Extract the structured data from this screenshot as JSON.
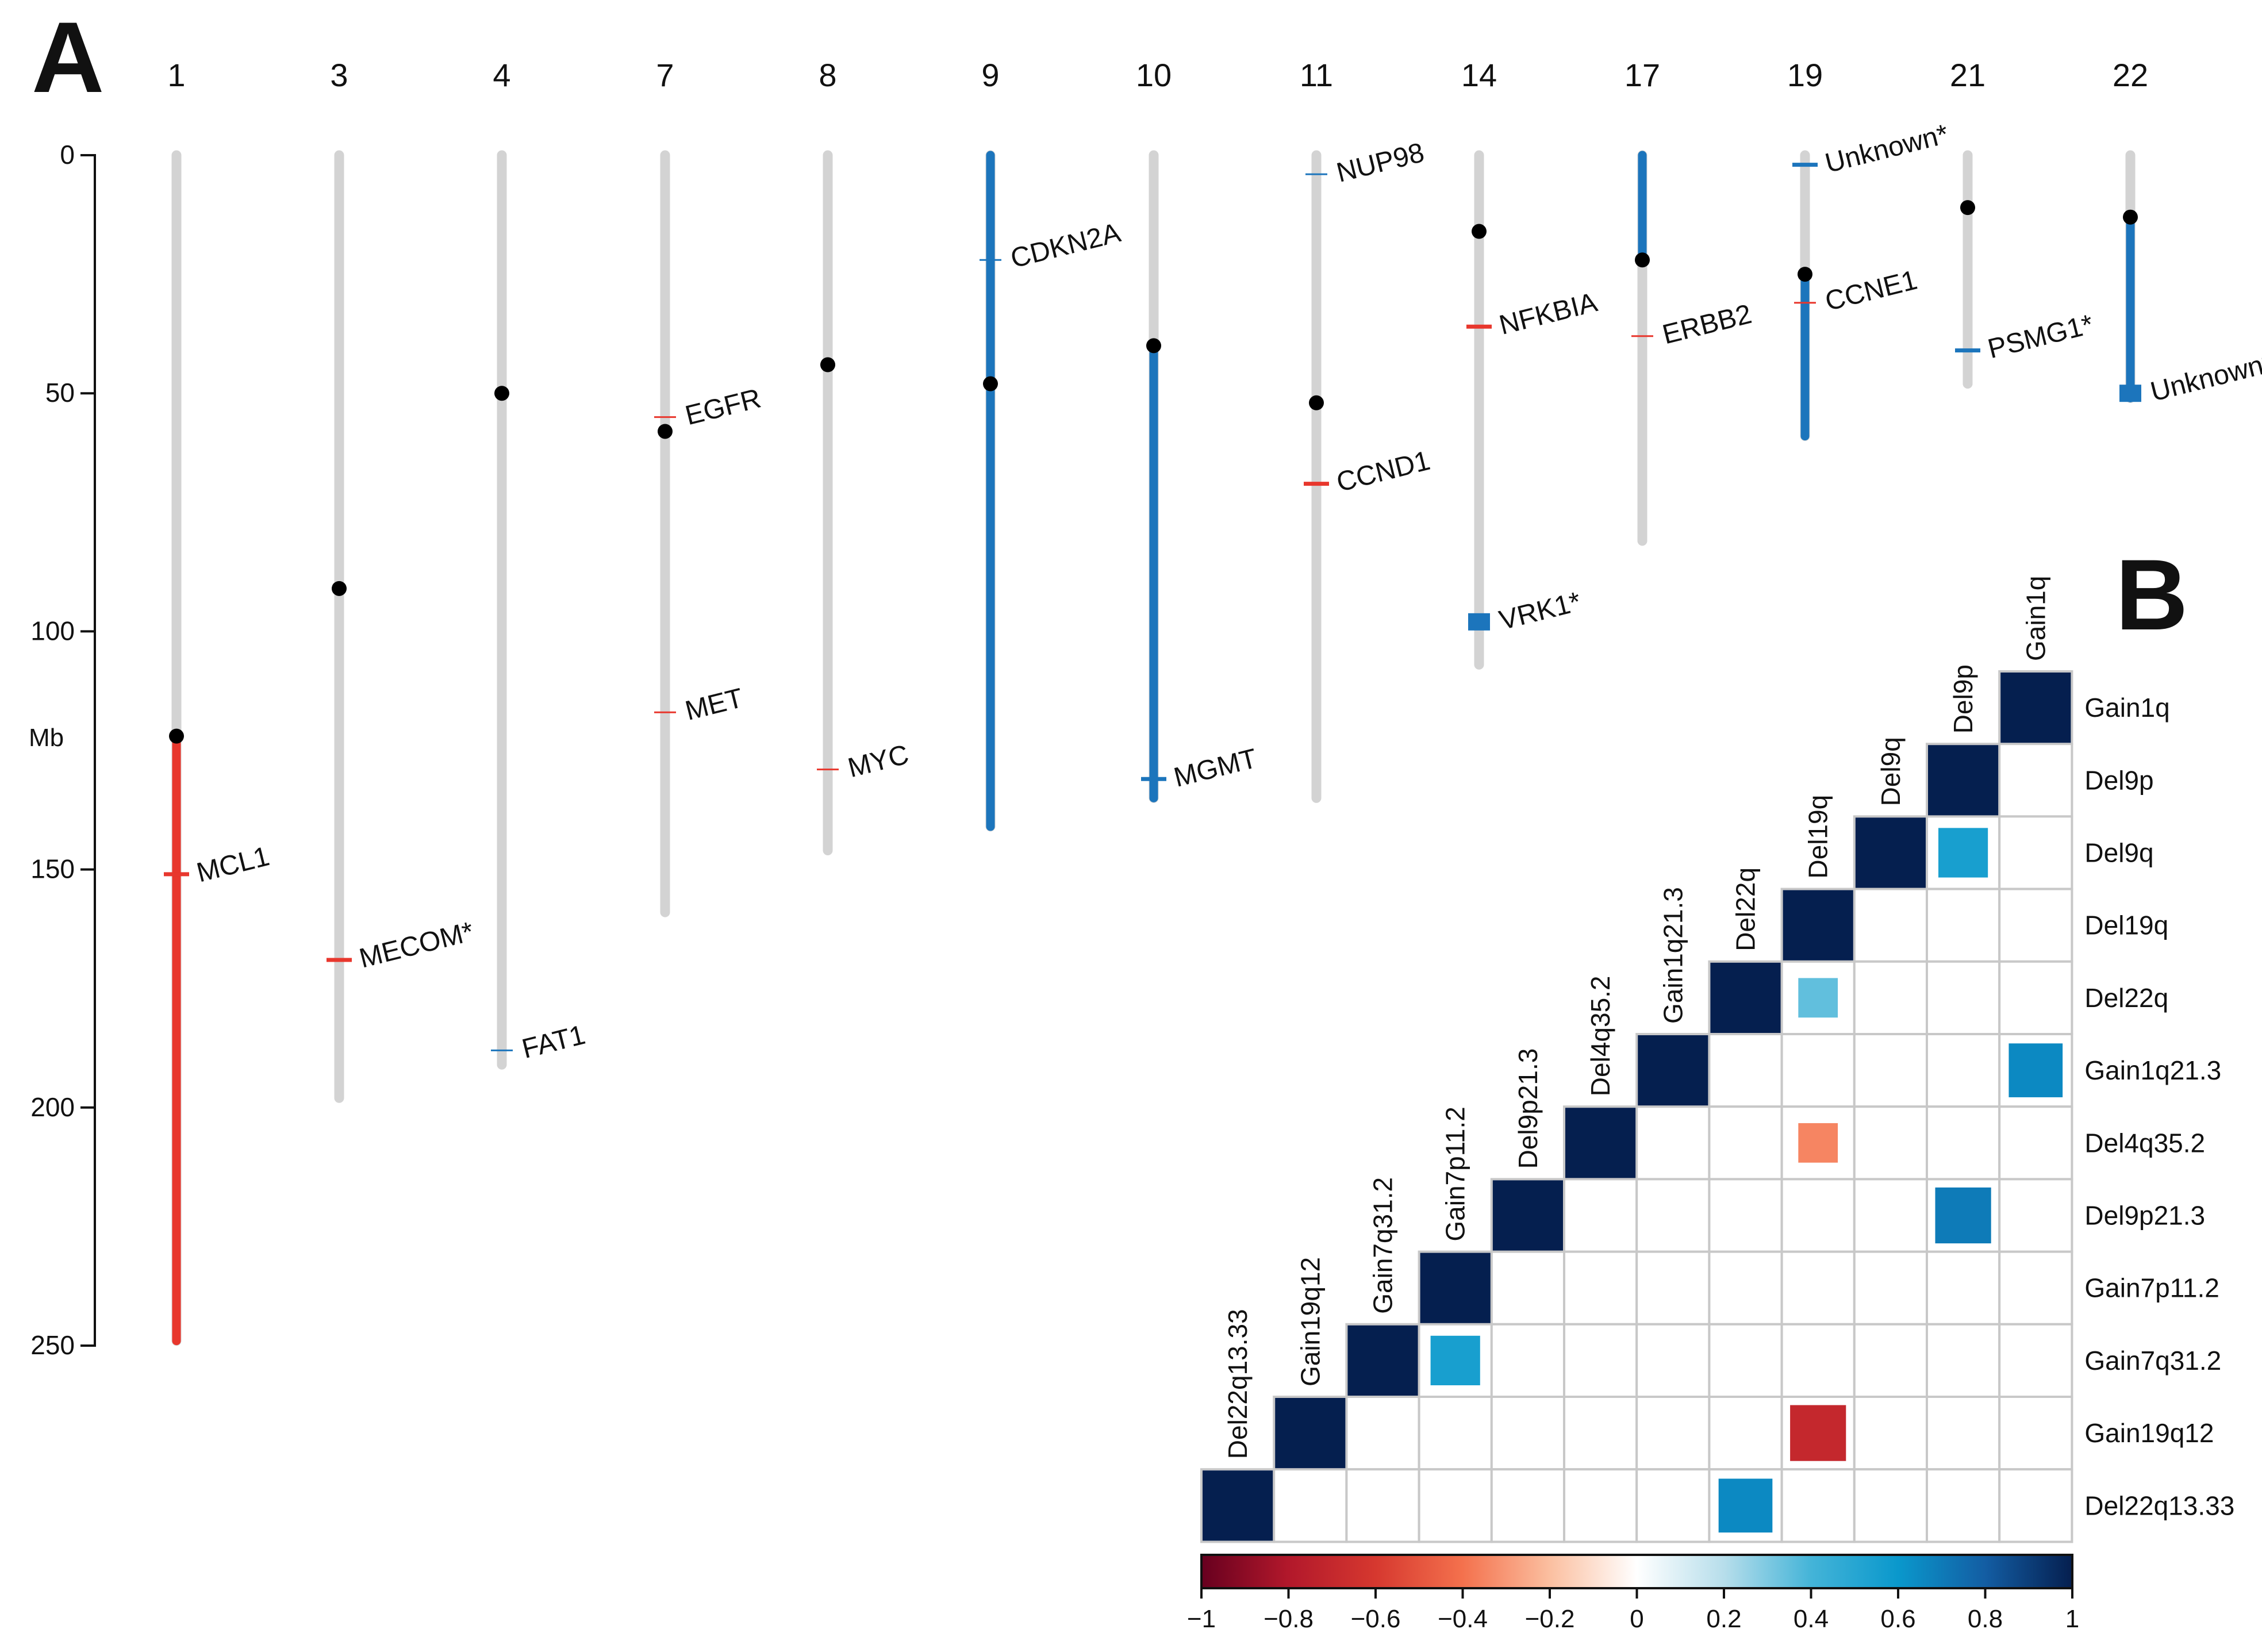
{
  "panels": [
    {
      "letter": "A"
    },
    {
      "letter": "B"
    }
  ],
  "chart_data": [
    {
      "type": "chromosome_ideogram",
      "panel": "A",
      "ylabel": "Mb",
      "ylim": [
        0,
        250
      ],
      "yticks": [
        0,
        50,
        100,
        150,
        200,
        250
      ],
      "colors": {
        "chromosome": "#d3d3d3",
        "gain": "#e8372d",
        "loss": "#1c75bc",
        "centromere": "#000000"
      },
      "chromosomes": [
        {
          "name": "1",
          "length": 249,
          "centromere": 122,
          "segments": [
            {
              "start": 122,
              "end": 249,
              "type": "gain"
            }
          ],
          "genes": [
            {
              "name": "MCL1",
              "pos": 151,
              "type": "gain",
              "mark": "tick"
            }
          ]
        },
        {
          "name": "3",
          "length": 198,
          "centromere": 91,
          "segments": [],
          "genes": [
            {
              "name": "MECOM*",
              "pos": 169,
              "type": "gain",
              "mark": "tick"
            }
          ]
        },
        {
          "name": "4",
          "length": 191,
          "centromere": 50,
          "segments": [],
          "genes": [
            {
              "name": "FAT1",
              "pos": 188,
              "type": "loss",
              "mark": "thin"
            }
          ]
        },
        {
          "name": "7",
          "length": 159,
          "centromere": 58,
          "segments": [],
          "genes": [
            {
              "name": "EGFR",
              "pos": 55,
              "type": "gain",
              "mark": "thin"
            },
            {
              "name": "MET",
              "pos": 117,
              "type": "gain",
              "mark": "thin"
            }
          ]
        },
        {
          "name": "8",
          "length": 146,
          "centromere": 44,
          "segments": [],
          "genes": [
            {
              "name": "MYC",
              "pos": 129,
              "type": "gain",
              "mark": "thin"
            }
          ]
        },
        {
          "name": "9",
          "length": 141,
          "centromere": 48,
          "segments": [
            {
              "start": 0,
              "end": 141,
              "type": "loss"
            }
          ],
          "genes": [
            {
              "name": "CDKN2A",
              "pos": 22,
              "type": "loss",
              "mark": "thin"
            }
          ]
        },
        {
          "name": "10",
          "length": 135,
          "centromere": 40,
          "segments": [
            {
              "start": 40,
              "end": 135,
              "type": "loss"
            }
          ],
          "genes": [
            {
              "name": "MGMT",
              "pos": 131,
              "type": "loss",
              "mark": "tick"
            }
          ]
        },
        {
          "name": "11",
          "length": 135,
          "centromere": 52,
          "segments": [],
          "genes": [
            {
              "name": "NUP98",
              "pos": 4,
              "type": "loss",
              "mark": "thin"
            },
            {
              "name": "CCND1",
              "pos": 69,
              "type": "gain",
              "mark": "tick"
            }
          ]
        },
        {
          "name": "14",
          "length": 107,
          "centromere": 16,
          "segments": [],
          "genes": [
            {
              "name": "NFKBIA",
              "pos": 36,
              "type": "gain",
              "mark": "tick"
            },
            {
              "name": "VRK1*",
              "pos": 98,
              "type": "loss",
              "mark": "box"
            }
          ]
        },
        {
          "name": "17",
          "length": 81,
          "centromere": 22,
          "segments": [
            {
              "start": 0,
              "end": 22,
              "type": "loss"
            }
          ],
          "genes": [
            {
              "name": "ERBB2",
              "pos": 38,
              "type": "gain",
              "mark": "thin"
            }
          ]
        },
        {
          "name": "19",
          "length": 59,
          "centromere": 25,
          "segments": [
            {
              "start": 25,
              "end": 59,
              "type": "loss"
            }
          ],
          "genes": [
            {
              "name": "Unknown*",
              "pos": 2,
              "type": "loss",
              "mark": "tick"
            },
            {
              "name": "CCNE1",
              "pos": 31,
              "type": "gain",
              "mark": "thin"
            }
          ]
        },
        {
          "name": "21",
          "length": 48,
          "centromere": 11,
          "segments": [],
          "genes": [
            {
              "name": "PSMG1*",
              "pos": 41,
              "type": "loss",
              "mark": "tick"
            }
          ]
        },
        {
          "name": "22",
          "length": 51,
          "centromere": 13,
          "segments": [
            {
              "start": 13,
              "end": 51,
              "type": "loss"
            }
          ],
          "genes": [
            {
              "name": "Unknown*",
              "pos": 50,
              "type": "loss",
              "mark": "box"
            }
          ]
        }
      ]
    },
    {
      "type": "heatmap",
      "panel": "B",
      "labels": [
        "Del22q13.33",
        "Gain19q12",
        "Gain7q31.2",
        "Gain7p11.2",
        "Del9p21.3",
        "Del4q35.2",
        "Gain1q21.3",
        "Del22q",
        "Del19q",
        "Del9q",
        "Del9p",
        "Gain1q"
      ],
      "row_labels_top_to_bottom": [
        "Gain1q",
        "Del9p",
        "Del9q",
        "Del19q",
        "Del22q",
        "Gain1q21.3",
        "Del4q35.2",
        "Del9p21.3",
        "Gain7p11.2",
        "Gain7q31.2",
        "Gain19q12",
        "Del22q13.33"
      ],
      "col_labels_left_to_right": [
        "Del22q13.33",
        "Gain19q12",
        "Gain7q31.2",
        "Gain7p11.2",
        "Del9p21.3",
        "Del4q35.2",
        "Gain1q21.3",
        "Del22q",
        "Del19q",
        "Del9q",
        "Del9p",
        "Gain1q"
      ],
      "cells": [
        {
          "row": "Del9q",
          "col": "Del9p",
          "value": 0.55
        },
        {
          "row": "Del22q",
          "col": "Del19q",
          "value": 0.35
        },
        {
          "row": "Gain1q21.3",
          "col": "Gain1q",
          "value": 0.65
        },
        {
          "row": "Del4q35.2",
          "col": "Del19q",
          "value": -0.35
        },
        {
          "row": "Del9p21.3",
          "col": "Del9p",
          "value": 0.7
        },
        {
          "row": "Gain7q31.2",
          "col": "Gain7p11.2",
          "value": 0.55
        },
        {
          "row": "Gain19q12",
          "col": "Del19q",
          "value": -0.7
        },
        {
          "row": "Del22q13.33",
          "col": "Del22q",
          "value": 0.65
        }
      ],
      "diagonal_value": 1,
      "colorbar": {
        "ticks": [
          "−1",
          "−0.8",
          "−0.6",
          "−0.4",
          "−0.2",
          "0",
          "0.2",
          "0.4",
          "0.6",
          "0.8",
          "1"
        ],
        "range": [
          -1,
          1
        ]
      }
    }
  ]
}
